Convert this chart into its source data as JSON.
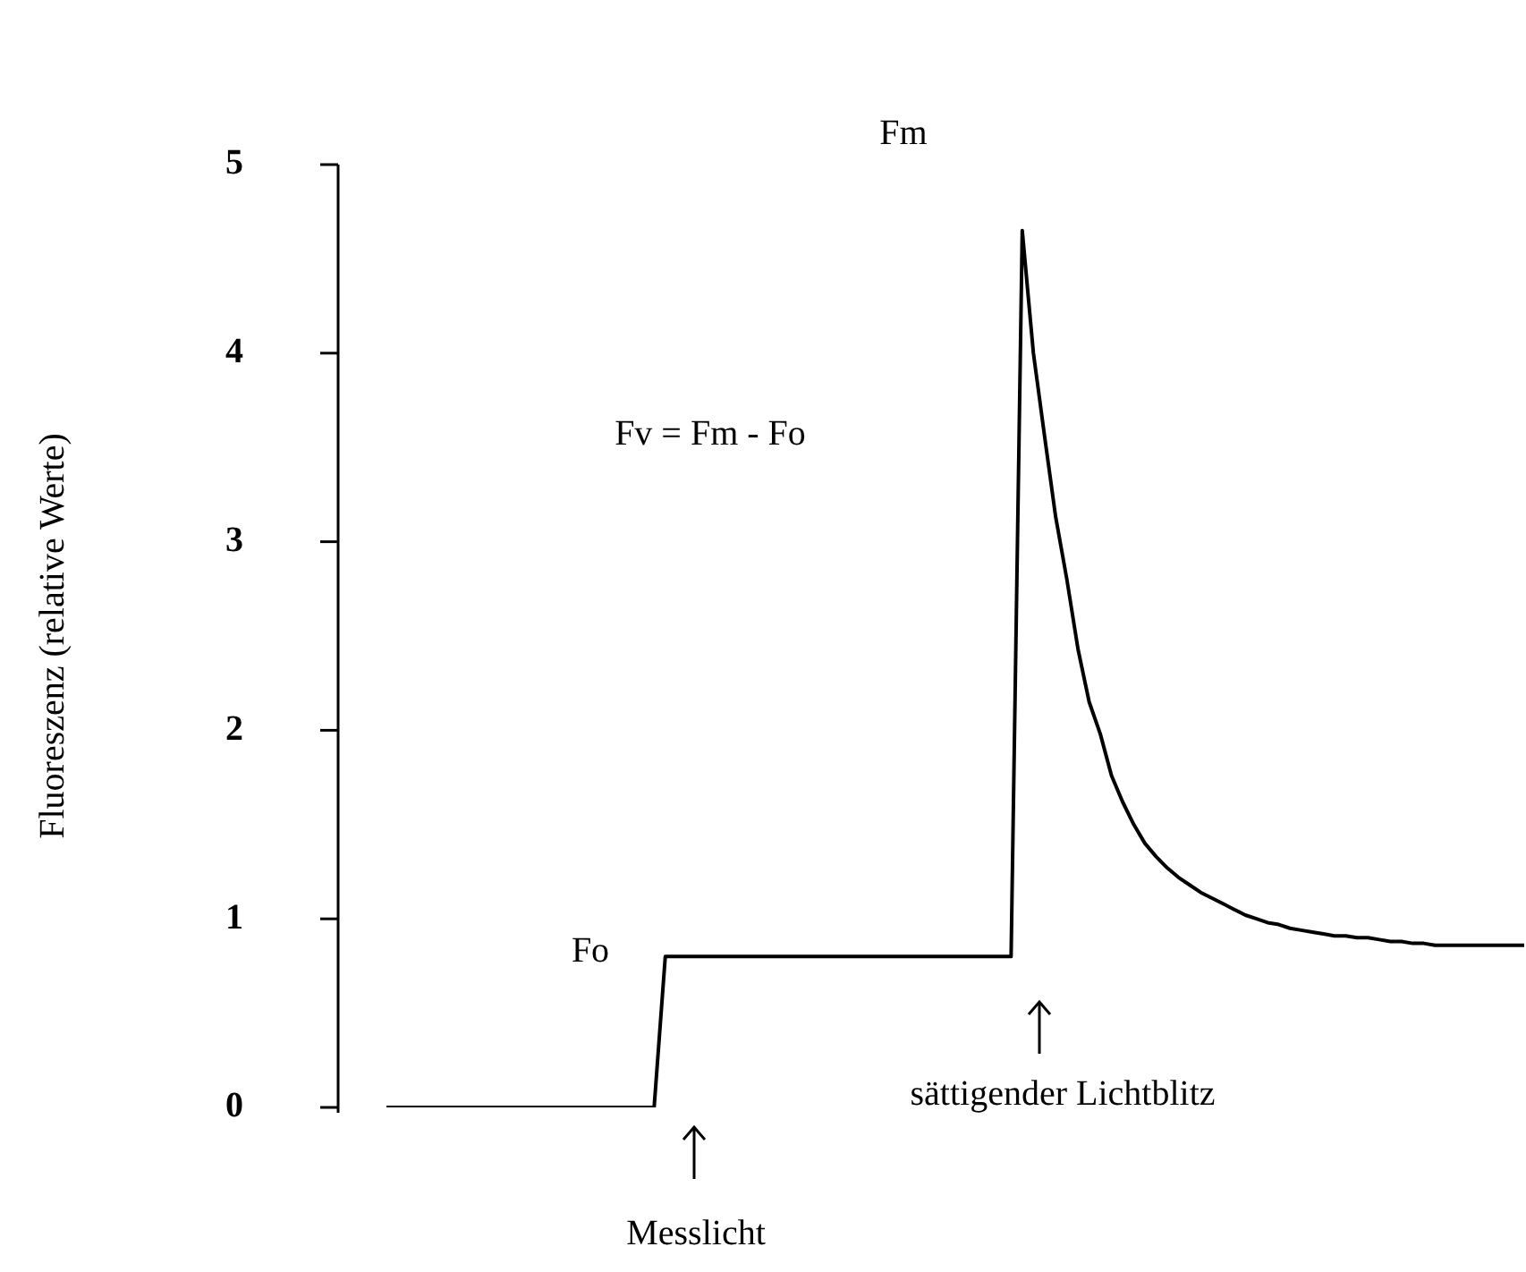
{
  "chart_data": {
    "type": "line",
    "ylabel": "Fluoreszenz (relative Werte)",
    "categories": [
      null,
      null,
      null,
      null,
      null,
      null,
      null,
      null,
      null,
      null,
      null,
      null,
      null,
      null,
      null,
      null,
      null,
      null,
      null,
      null,
      null,
      null,
      null,
      null,
      null,
      null,
      null,
      null,
      null,
      null,
      null,
      null,
      null,
      null,
      null,
      null,
      null,
      null,
      null,
      null,
      null,
      null,
      null,
      null,
      null,
      null,
      null,
      null,
      null,
      null,
      null,
      null,
      null,
      null,
      null,
      null,
      null,
      null,
      null,
      null,
      null,
      null,
      null,
      null,
      null,
      null,
      null,
      null,
      null,
      null,
      null,
      null,
      null,
      null,
      null,
      null,
      null,
      null,
      null,
      null,
      null,
      null,
      null,
      null,
      null,
      null,
      null,
      null,
      null,
      null,
      null,
      null,
      null,
      null,
      null,
      null,
      null,
      null,
      null,
      null,
      null,
      null,
      null
    ],
    "series": [
      {
        "color": "#000000",
        "values": [
          0,
          0,
          0,
          0,
          0,
          0,
          0,
          0,
          0,
          0,
          0,
          0,
          0,
          0,
          0,
          0,
          0,
          0,
          0,
          0,
          0,
          0,
          0,
          0,
          0,
          0.8,
          0.8,
          0.8,
          0.8,
          0.8,
          0.8,
          0.8,
          0.8,
          0.8,
          0.8,
          0.8,
          0.8,
          0.8,
          0.8,
          0.8,
          0.8,
          0.8,
          0.8,
          0.8,
          0.8,
          0.8,
          0.8,
          0.8,
          0.8,
          0.8,
          0.8,
          0.8,
          0.8,
          0.8,
          0.8,
          0.8,
          0.8,
          4.65,
          4.0,
          3.56,
          3.13,
          2.8,
          2.43,
          2.15,
          1.98,
          1.76,
          1.62,
          1.5,
          1.4,
          1.33,
          1.27,
          1.22,
          1.18,
          1.14,
          1.11,
          1.08,
          1.05,
          1.02,
          1.0,
          0.98,
          0.97,
          0.95,
          0.94,
          0.93,
          0.92,
          0.91,
          0.91,
          0.9,
          0.9,
          0.89,
          0.88,
          0.88,
          0.87,
          0.87,
          0.86,
          0.86,
          0.86,
          0.86,
          0.86,
          0.86,
          0.86,
          0.86,
          0.86
        ]
      }
    ],
    "ylim": [
      0,
      5
    ],
    "yticks": [
      0,
      1,
      2,
      3,
      4,
      5
    ],
    "tick_labels": "y",
    "grid": false,
    "legend": false,
    "marker": "none",
    "line_style": "solid",
    "annotations": [
      "Fm",
      "Fo",
      "Fv = Fm - Fo",
      "sättigender Lichtblitz",
      "Messlicht"
    ]
  }
}
